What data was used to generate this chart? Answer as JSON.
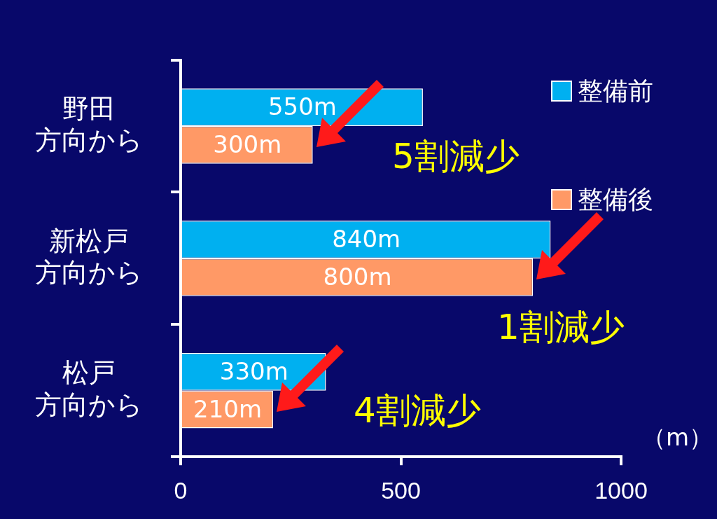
{
  "chart_data": {
    "type": "bar",
    "orientation": "horizontal",
    "categories": [
      "野田方向から",
      "新松戸方向から",
      "松戸方向から"
    ],
    "series": [
      {
        "name": "整備前",
        "color": "#00b0f0",
        "values": [
          550,
          840,
          330
        ],
        "value_labels": [
          "550m",
          "840m",
          "330m"
        ]
      },
      {
        "name": "整備後",
        "color": "#ff9966",
        "values": [
          300,
          800,
          210
        ],
        "value_labels": [
          "300m",
          "800m",
          "210m"
        ]
      }
    ],
    "xlim": [
      0,
      1000
    ],
    "xticks": [
      0,
      500,
      1000
    ],
    "xlabel": "（m）",
    "legend": "top right",
    "grid": false,
    "annotations": [
      "5割減少",
      "1割減少",
      "4割減少"
    ]
  }
}
